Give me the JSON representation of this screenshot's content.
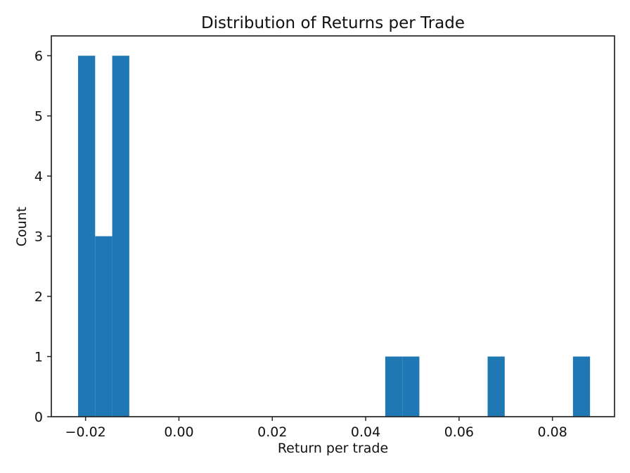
{
  "chart_data": {
    "type": "bar",
    "subtype": "histogram",
    "title": "Distribution of Returns per Trade",
    "xlabel": "Return per trade",
    "ylabel": "Count",
    "bar_color": "#1f77b4",
    "axis_color": "#262626",
    "grid": false,
    "legend": null,
    "xlim": [
      -0.02733,
      0.0933
    ],
    "ylim": [
      0,
      6.33
    ],
    "xticks": [
      -0.02,
      0.0,
      0.02,
      0.04,
      0.06,
      0.08
    ],
    "xtick_labels": [
      "−0.02",
      "0.00",
      "0.02",
      "0.04",
      "0.06",
      "0.08"
    ],
    "yticks": [
      0,
      1,
      2,
      3,
      4,
      5,
      6
    ],
    "ytick_labels": [
      "0",
      "1",
      "2",
      "3",
      "4",
      "5",
      "6"
    ],
    "bin_start": -0.0216,
    "bin_width": 0.003655,
    "counts": [
      6,
      3,
      6,
      0,
      0,
      0,
      0,
      0,
      0,
      0,
      0,
      0,
      0,
      0,
      0,
      0,
      0,
      0,
      1,
      1,
      0,
      0,
      0,
      0,
      1,
      0,
      0,
      0,
      0,
      1
    ],
    "nonzero_bins_readout": [
      {
        "range": "[-0.0216, -0.0179]",
        "count": 6
      },
      {
        "range": "[-0.0179, -0.0143]",
        "count": 3
      },
      {
        "range": "[-0.0143, -0.0106]",
        "count": 6
      },
      {
        "range": "[0.0442, 0.0478]",
        "count": 1
      },
      {
        "range": "[0.0478, 0.0515]",
        "count": 1
      },
      {
        "range": "[0.0661, 0.0698]",
        "count": 1
      },
      {
        "range": "[0.0844, 0.0881]",
        "count": 1
      }
    ]
  }
}
